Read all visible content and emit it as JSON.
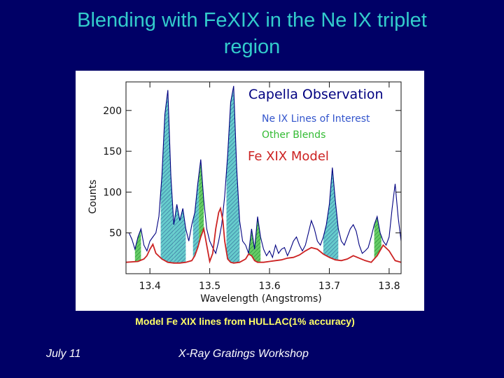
{
  "slide": {
    "title_line1": "Blending with FeXIX in the Ne IX triplet",
    "title_line2": "region",
    "caption": "Model Fe XIX lines from HULLAC(1% accuracy)",
    "footer_left": "July 11",
    "footer_center": "X-Ray Gratings Workshop"
  },
  "chart_data": {
    "type": "line",
    "xlabel": "Wavelength (Angstroms)",
    "ylabel": "Counts",
    "xlim": [
      13.36,
      13.82
    ],
    "ylim": [
      0,
      235
    ],
    "x_ticks": [
      {
        "value": 13.4,
        "label": "13.4"
      },
      {
        "value": 13.5,
        "label": "13.5"
      },
      {
        "value": 13.6,
        "label": "13.6"
      },
      {
        "value": 13.7,
        "label": "13.7"
      },
      {
        "value": 13.8,
        "label": "13.8"
      }
    ],
    "y_ticks": [
      {
        "value": 50,
        "label": "50"
      },
      {
        "value": 100,
        "label": "100"
      },
      {
        "value": 150,
        "label": "150"
      },
      {
        "value": 200,
        "label": "200"
      }
    ],
    "legend": [
      {
        "label": "Capella Observation",
        "color": "#000080"
      },
      {
        "label": "Ne IX Lines of Interest",
        "color": "#3355cc"
      },
      {
        "label": "Other Blends",
        "color": "#33bb33"
      },
      {
        "label": "Fe XIX Model",
        "color": "#cc2222"
      }
    ],
    "series": [
      {
        "name": "Capella Observation",
        "color": "#000080",
        "x": [
          13.365,
          13.37,
          13.375,
          13.38,
          13.385,
          13.39,
          13.395,
          13.4,
          13.405,
          13.41,
          13.415,
          13.42,
          13.425,
          13.43,
          13.435,
          13.44,
          13.445,
          13.45,
          13.455,
          13.46,
          13.465,
          13.47,
          13.475,
          13.48,
          13.485,
          13.49,
          13.495,
          13.5,
          13.505,
          13.51,
          13.515,
          13.52,
          13.525,
          13.53,
          13.535,
          13.54,
          13.545,
          13.55,
          13.555,
          13.56,
          13.565,
          13.57,
          13.575,
          13.58,
          13.585,
          13.59,
          13.595,
          13.6,
          13.605,
          13.61,
          13.615,
          13.62,
          13.625,
          13.63,
          13.635,
          13.64,
          13.645,
          13.65,
          13.655,
          13.66,
          13.665,
          13.67,
          13.675,
          13.68,
          13.685,
          13.69,
          13.695,
          13.7,
          13.705,
          13.71,
          13.715,
          13.72,
          13.725,
          13.73,
          13.735,
          13.74,
          13.745,
          13.75,
          13.755,
          13.76,
          13.765,
          13.77,
          13.775,
          13.78,
          13.785,
          13.79,
          13.795,
          13.8,
          13.805,
          13.81,
          13.815,
          13.82
        ],
        "y": [
          50,
          42,
          30,
          45,
          55,
          35,
          28,
          40,
          45,
          50,
          70,
          120,
          195,
          225,
          120,
          60,
          85,
          65,
          80,
          55,
          40,
          60,
          75,
          110,
          140,
          90,
          55,
          40,
          32,
          25,
          40,
          60,
          95,
          145,
          210,
          230,
          130,
          65,
          40,
          35,
          25,
          55,
          30,
          70,
          45,
          30,
          22,
          28,
          20,
          35,
          25,
          30,
          32,
          22,
          30,
          40,
          45,
          35,
          28,
          35,
          50,
          65,
          55,
          40,
          35,
          45,
          60,
          85,
          130,
          90,
          55,
          40,
          35,
          45,
          55,
          60,
          52,
          35,
          25,
          28,
          32,
          45,
          60,
          70,
          50,
          40,
          35,
          45,
          80,
          110,
          70,
          40
        ]
      },
      {
        "name": "Fe XIX Model",
        "color": "#cc2222",
        "x": [
          13.36,
          13.38,
          13.39,
          13.395,
          13.4,
          13.405,
          13.41,
          13.42,
          13.43,
          13.44,
          13.45,
          13.46,
          13.47,
          13.475,
          13.48,
          13.485,
          13.49,
          13.495,
          13.5,
          13.505,
          13.51,
          13.515,
          13.518,
          13.522,
          13.525,
          13.53,
          13.535,
          13.54,
          13.55,
          13.56,
          13.565,
          13.57,
          13.575,
          13.58,
          13.59,
          13.6,
          13.61,
          13.62,
          13.63,
          13.64,
          13.65,
          13.66,
          13.67,
          13.68,
          13.69,
          13.7,
          13.71,
          13.72,
          13.73,
          13.735,
          13.74,
          13.75,
          13.76,
          13.77,
          13.78,
          13.79,
          13.8,
          13.81,
          13.82
        ],
        "y": [
          14,
          15,
          18,
          22,
          30,
          36,
          25,
          18,
          14,
          13,
          13,
          14,
          16,
          22,
          32,
          45,
          55,
          35,
          15,
          25,
          55,
          75,
          80,
          65,
          40,
          18,
          14,
          13,
          14,
          18,
          24,
          22,
          16,
          14,
          14,
          15,
          16,
          17,
          19,
          20,
          23,
          28,
          32,
          30,
          24,
          20,
          17,
          16,
          18,
          20,
          22,
          19,
          16,
          14,
          22,
          35,
          28,
          16,
          14
        ]
      }
    ],
    "shaded_regions": [
      {
        "category": "Other Blends",
        "x_range": [
          13.375,
          13.385
        ]
      },
      {
        "category": "Ne IX Lines of Interest",
        "x_range": [
          13.418,
          13.44
        ]
      },
      {
        "category": "Ne IX Lines of Interest",
        "x_range": [
          13.44,
          13.46
        ]
      },
      {
        "category": "Ne IX Lines of Interest",
        "x_range": [
          13.472,
          13.482
        ]
      },
      {
        "category": "Other Blends",
        "x_range": [
          13.482,
          13.49
        ]
      },
      {
        "category": "Ne IX Lines of Interest",
        "x_range": [
          13.528,
          13.55
        ]
      },
      {
        "category": "Other Blends",
        "x_range": [
          13.565,
          13.585
        ]
      },
      {
        "category": "Ne IX Lines of Interest",
        "x_range": [
          13.69,
          13.715
        ]
      },
      {
        "category": "Other Blends",
        "x_range": [
          13.775,
          13.787
        ]
      }
    ]
  }
}
